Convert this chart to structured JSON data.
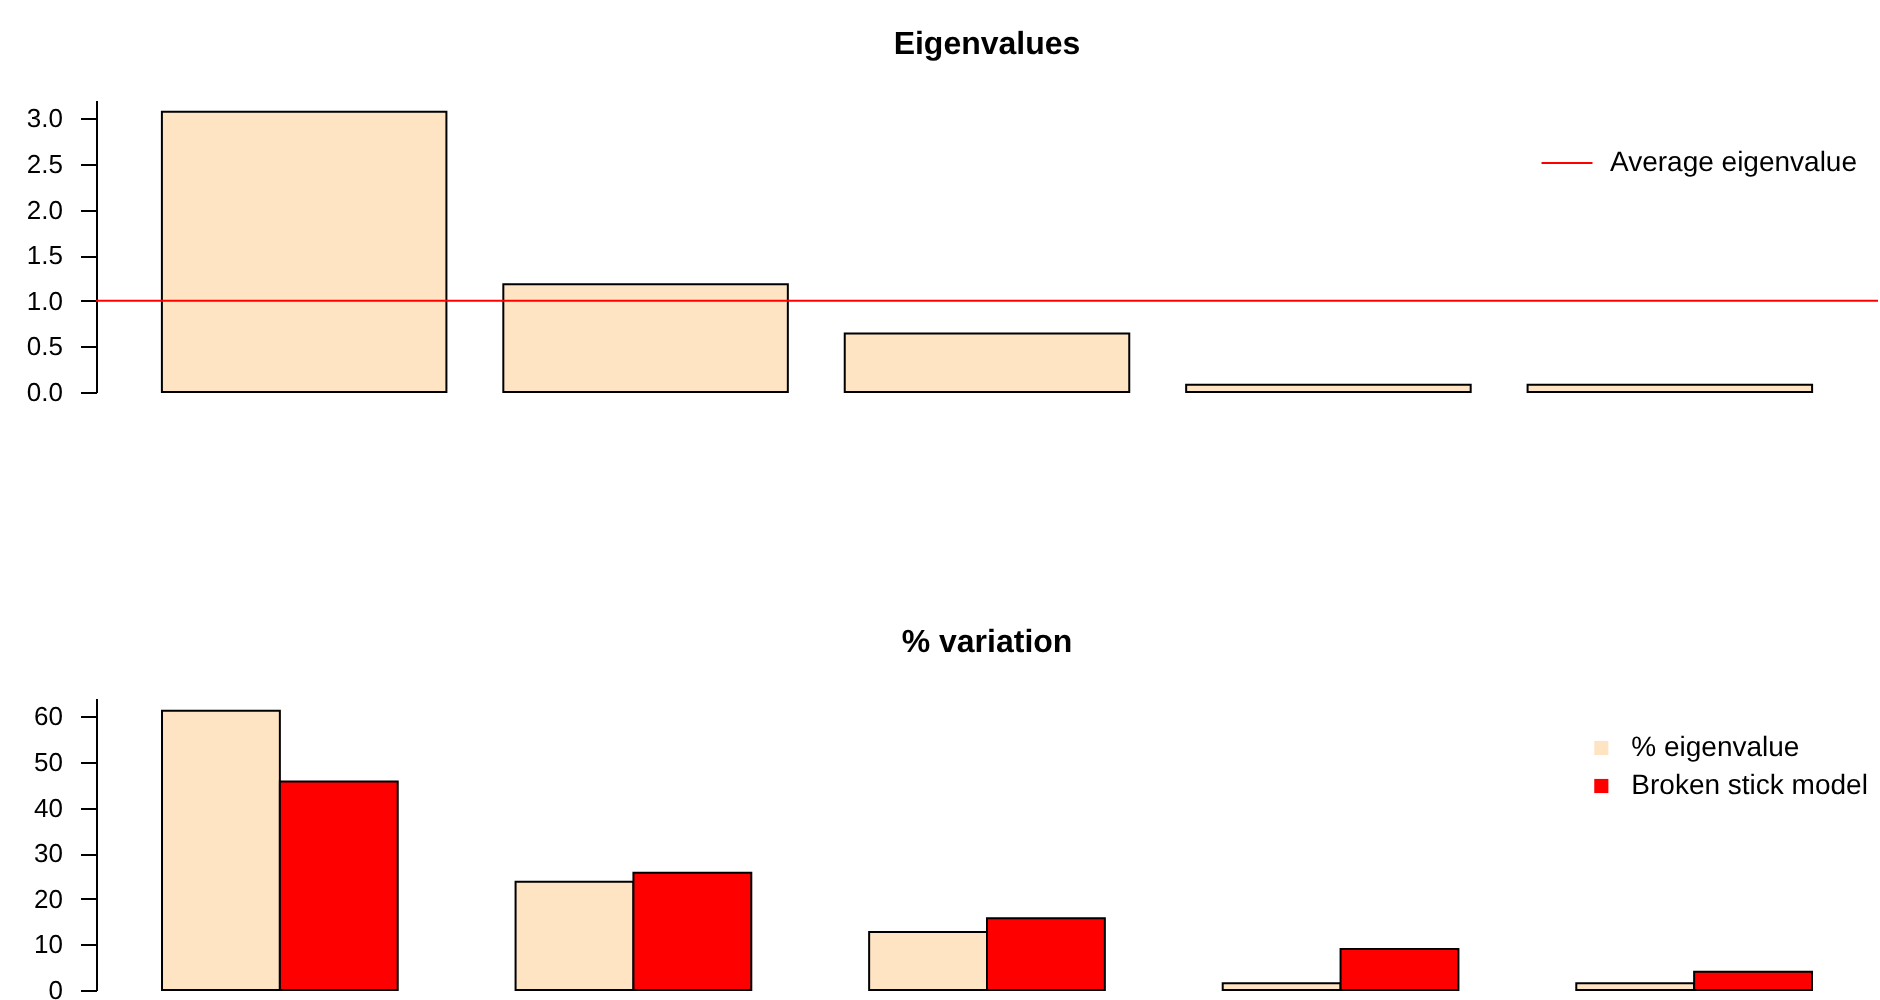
{
  "chart_data": [
    {
      "type": "bar",
      "title": "Eigenvalues",
      "categories": [
        null,
        null,
        null,
        null,
        null
      ],
      "values": [
        3.07,
        1.18,
        0.64,
        0.08,
        0.08
      ],
      "color": "#ffe4c4",
      "ylim": [
        0,
        3.2
      ],
      "yticks": [
        {
          "value": 0,
          "label": "0.0"
        },
        0.5,
        {
          "value": 1,
          "label": "1.0"
        },
        1.5,
        {
          "value": 2,
          "label": "2.0"
        },
        2.5,
        {
          "value": 3,
          "label": "3.0"
        }
      ],
      "ref_lines": [
        {
          "axis": "y",
          "value": 1,
          "label": "Average eigenvalue",
          "color": "#ff0000"
        }
      ],
      "legend": "top right",
      "tick_labels": "y"
    },
    {
      "type": "bar",
      "title": "% variation",
      "categories": [
        null,
        null,
        null,
        null,
        null
      ],
      "series": [
        {
          "name": "% eigenvalue",
          "color": "#ffe4c4",
          "values": [
            61.2,
            23.7,
            12.7,
            1.5,
            1.5
          ]
        },
        {
          "name": "Broken stick model",
          "color": "#ff0000",
          "values": [
            45.7,
            25.7,
            15.7,
            9.0,
            4.0
          ]
        }
      ],
      "ylim": [
        0,
        64
      ],
      "yticks": [
        0,
        10,
        20,
        30,
        40,
        50,
        60
      ],
      "legend": "top right",
      "tick_labels": "y"
    }
  ]
}
